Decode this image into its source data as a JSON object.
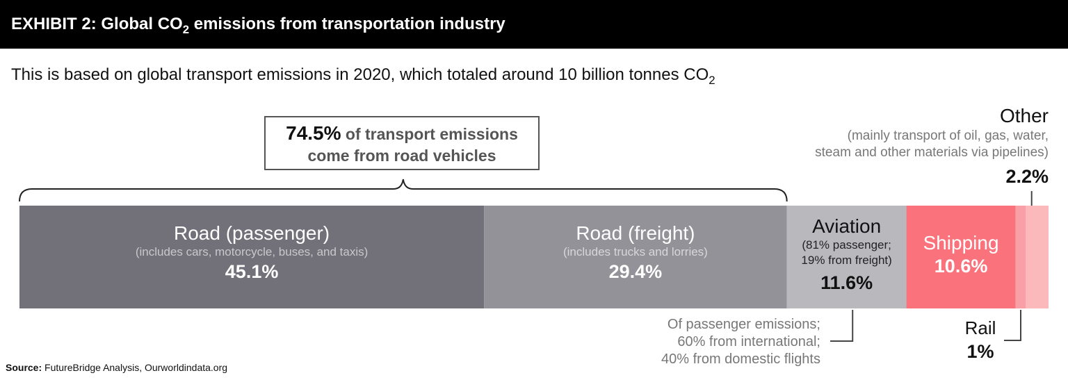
{
  "header": {
    "title_pre": "EXHIBIT 2: Global CO",
    "title_sub": "2",
    "title_post": " emissions from transportation industry"
  },
  "subtitle": {
    "text_pre": "This is based on global transport emissions in 2020, which totaled around 10 billion tonnes CO",
    "text_sub": "2"
  },
  "callout": {
    "value": "74.5%",
    "line1_rest": " of transport emissions",
    "line2": "come from road vehicles"
  },
  "chart_data": {
    "type": "bar",
    "orientation": "horizontal-stacked",
    "unit": "%",
    "total_label": "around 10 billion tonnes CO2",
    "segments": [
      {
        "name": "Road (passenger)",
        "detail": "(includes cars, motorcycle, buses, and taxis)",
        "value": 45.1,
        "label": "45.1%",
        "color": "#727179"
      },
      {
        "name": "Road (freight)",
        "detail": "(includes trucks and lorries)",
        "value": 29.4,
        "label": "29.4%",
        "color": "#939298"
      },
      {
        "name": "Aviation",
        "detail_line1": "(81% passenger;",
        "detail_line2": "19% from freight)",
        "value": 11.6,
        "label": "11.6%",
        "color": "#b9b8bd"
      },
      {
        "name": "Shipping",
        "value": 10.6,
        "label": "10.6%",
        "color": "#fa737c"
      },
      {
        "name": "Rail",
        "value": 1,
        "label": "1%",
        "color": "#f8a0a6"
      },
      {
        "name": "Other",
        "value": 2.2,
        "label": "2.2%",
        "color": "#fbb9bc"
      }
    ],
    "bracket_group": {
      "segments": [
        "Road (passenger)",
        "Road (freight)"
      ],
      "value": 74.5
    }
  },
  "other_annotation": {
    "name": "Other",
    "detail_line1": "(mainly transport of oil, gas, water,",
    "detail_line2": "steam and other materials via pipelines)",
    "value": "2.2%"
  },
  "aviation_annotation": {
    "line1": "Of passenger emissions;",
    "line2": "60% from international;",
    "line3": "40% from domestic flights"
  },
  "rail_annotation": {
    "name": "Rail",
    "value": "1%"
  },
  "source": {
    "label": "Source:",
    "text": " FutureBridge Analysis, Ourworldindata.org"
  }
}
